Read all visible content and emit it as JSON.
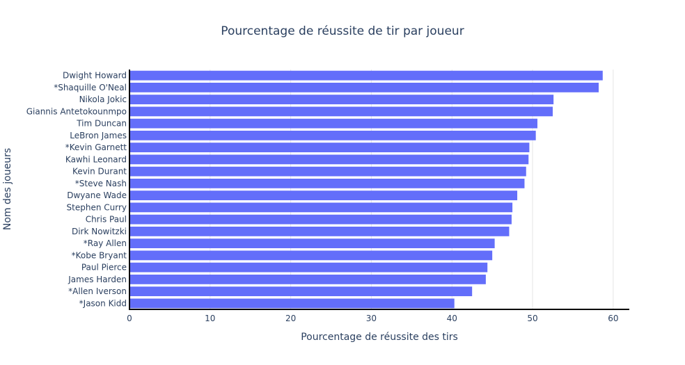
{
  "chart_data": {
    "type": "bar",
    "orientation": "horizontal",
    "title": "Pourcentage de réussite de tir par joueur",
    "xlabel": "Pourcentage de réussite des tirs",
    "ylabel": "Nom des joueurs",
    "xlim": [
      0,
      62
    ],
    "xticks": [
      0,
      10,
      20,
      30,
      40,
      50,
      60
    ],
    "grid": true,
    "bar_color": "#636efa",
    "categories": [
      "Dwight Howard",
      "*Shaquille O'Neal",
      "Nikola Jokic",
      "Giannis Antetokounmpo",
      "Tim Duncan",
      "LeBron James",
      "*Kevin Garnett",
      "Kawhi Leonard",
      "Kevin Durant",
      "*Steve Nash",
      "Dwyane Wade",
      "Stephen Curry",
      "Chris Paul",
      "Dirk Nowitzki",
      "*Ray Allen",
      "*Kobe Bryant",
      "Paul Pierce",
      "James Harden",
      "*Allen Iverson",
      "*Jason Kidd"
    ],
    "values": [
      58.7,
      58.2,
      52.6,
      52.5,
      50.6,
      50.4,
      49.6,
      49.5,
      49.2,
      49.0,
      48.1,
      47.5,
      47.4,
      47.1,
      45.3,
      45.0,
      44.4,
      44.2,
      42.5,
      40.3
    ]
  }
}
